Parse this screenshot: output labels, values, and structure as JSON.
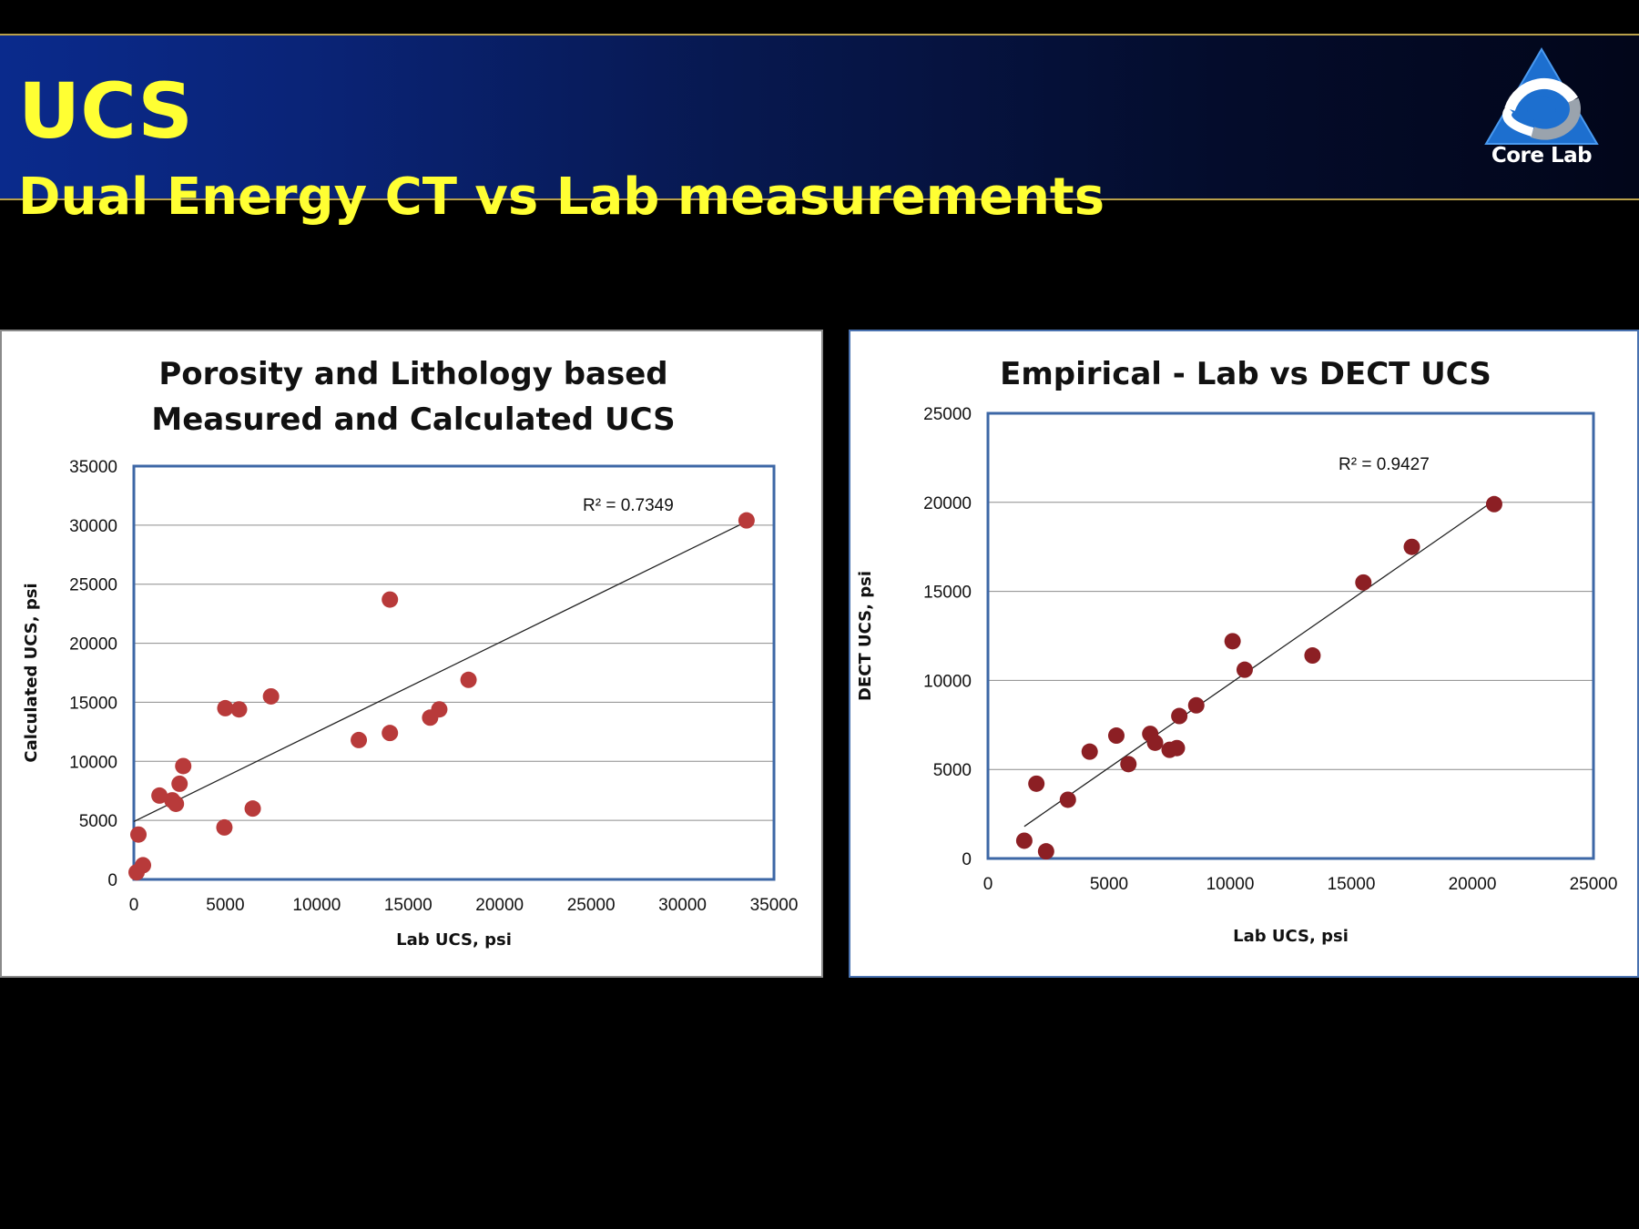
{
  "header": {
    "title": "UCS",
    "subtitle": "Dual Energy CT vs Lab measurements",
    "logo_text": "Core Lab",
    "logo_icon": "corelab-triangle-icon"
  },
  "colors": {
    "title": "#ffff33",
    "banner": "#0a2478",
    "marker_left": "#b83a3a",
    "marker_right": "#8c1f24",
    "plot_border": "#3d67a6"
  },
  "chart_data": [
    {
      "type": "scatter",
      "title_lines": [
        "Porosity and Lithology based",
        "Measured and Calculated UCS"
      ],
      "xlabel": "Lab UCS, psi",
      "ylabel": "Calculated UCS, psi",
      "xlim": [
        0,
        35000
      ],
      "ylim": [
        0,
        35000
      ],
      "xticks": [
        "0",
        "5000",
        "10000",
        "15000",
        "20000",
        "25000",
        "30000",
        "35000"
      ],
      "yticks": [
        "0",
        "5000",
        "10000",
        "15000",
        "20000",
        "25000",
        "30000",
        "35000"
      ],
      "grid": "horizontal",
      "annotation": "R² = 0.7349",
      "trendline": {
        "x": [
          0,
          33500
        ],
        "y": [
          4900,
          30300
        ]
      },
      "points": [
        {
          "x": 150,
          "y": 600
        },
        {
          "x": 500,
          "y": 1200
        },
        {
          "x": 250,
          "y": 3800
        },
        {
          "x": 1400,
          "y": 7100
        },
        {
          "x": 2300,
          "y": 6400
        },
        {
          "x": 2100,
          "y": 6700
        },
        {
          "x": 2500,
          "y": 8100
        },
        {
          "x": 2700,
          "y": 9600
        },
        {
          "x": 4950,
          "y": 4400
        },
        {
          "x": 5000,
          "y": 14500
        },
        {
          "x": 5750,
          "y": 14400
        },
        {
          "x": 6500,
          "y": 6000
        },
        {
          "x": 7500,
          "y": 15500
        },
        {
          "x": 12300,
          "y": 11800
        },
        {
          "x": 14000,
          "y": 12400
        },
        {
          "x": 14000,
          "y": 23700
        },
        {
          "x": 16200,
          "y": 13700
        },
        {
          "x": 16700,
          "y": 14400
        },
        {
          "x": 18300,
          "y": 16900
        },
        {
          "x": 33500,
          "y": 30400
        }
      ]
    },
    {
      "type": "scatter",
      "title_lines": [
        "Empirical - Lab vs DECT UCS"
      ],
      "xlabel": "Lab UCS, psi",
      "ylabel": "DECT UCS, psi",
      "xlim": [
        0,
        25000
      ],
      "ylim": [
        0,
        25000
      ],
      "xticks": [
        "0",
        "5000",
        "10000",
        "15000",
        "20000",
        "25000"
      ],
      "yticks": [
        "0",
        "5000",
        "10000",
        "15000",
        "20000",
        "25000"
      ],
      "grid": "horizontal",
      "annotation": "R² = 0.9427",
      "trendline": {
        "x": [
          1500,
          21000
        ],
        "y": [
          1800,
          20200
        ]
      },
      "points": [
        {
          "x": 1500,
          "y": 1000
        },
        {
          "x": 2000,
          "y": 4200
        },
        {
          "x": 2400,
          "y": 400
        },
        {
          "x": 3300,
          "y": 3300
        },
        {
          "x": 4200,
          "y": 6000
        },
        {
          "x": 5300,
          "y": 6900
        },
        {
          "x": 5800,
          "y": 5300
        },
        {
          "x": 6700,
          "y": 7000
        },
        {
          "x": 6900,
          "y": 6500
        },
        {
          "x": 7500,
          "y": 6100
        },
        {
          "x": 7800,
          "y": 6200
        },
        {
          "x": 7900,
          "y": 8000
        },
        {
          "x": 8600,
          "y": 8600
        },
        {
          "x": 10100,
          "y": 12200
        },
        {
          "x": 10600,
          "y": 10600
        },
        {
          "x": 13400,
          "y": 11400
        },
        {
          "x": 15500,
          "y": 15500
        },
        {
          "x": 17500,
          "y": 17500
        },
        {
          "x": 20900,
          "y": 19900
        }
      ]
    }
  ]
}
